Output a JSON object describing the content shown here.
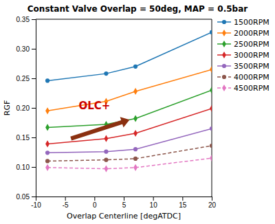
{
  "chart_data": {
    "type": "line",
    "title": "Constant Valve Overlap = 50deg, MAP = 0.5bar",
    "x_label": "Overlap Centerline [degATDC]",
    "y_label": "RGF",
    "x": [
      -8,
      2,
      7,
      20
    ],
    "xlim": [
      -10,
      20
    ],
    "ylim": [
      0.05,
      0.35
    ],
    "xticks": [
      -10,
      -5,
      0,
      5,
      10,
      15,
      20
    ],
    "yticks": [
      0.05,
      {
        "value": 0.1,
        "label": "0.10"
      },
      0.15,
      {
        "value": 0.2,
        "label": "0.20"
      },
      0.25,
      {
        "value": 0.3,
        "label": "0.30"
      },
      0.35
    ],
    "grid": false,
    "legend": "right",
    "series": [
      {
        "name": "1500RPM",
        "line_style": "solid",
        "marker": "circle",
        "values": [
          0.246,
          0.258,
          0.27,
          0.328
        ]
      },
      {
        "name": "2000RPM",
        "line_style": "solid",
        "marker": "diamond",
        "values": [
          0.195,
          0.211,
          0.228,
          0.265
        ]
      },
      {
        "name": "2500RPM",
        "line_style": "solid",
        "marker": "diamond",
        "values": [
          0.167,
          0.172,
          0.182,
          0.23
        ]
      },
      {
        "name": "3000RPM",
        "line_style": "solid",
        "marker": "diamond",
        "values": [
          0.139,
          0.148,
          0.157,
          0.199
        ]
      },
      {
        "name": "3500RPM",
        "line_style": "solid",
        "marker": "circle",
        "values": [
          0.124,
          0.126,
          0.13,
          0.165
        ]
      },
      {
        "name": "4000RPM",
        "line_style": "dashed",
        "marker": "circle",
        "values": [
          0.11,
          0.112,
          0.114,
          0.136
        ]
      },
      {
        "name": "4500RPM",
        "line_style": "dashed",
        "marker": "diamond",
        "values": [
          0.099,
          0.097,
          0.099,
          0.115
        ]
      }
    ],
    "annotations": [
      {
        "text": "OLC+",
        "x": 0,
        "y": 0.198,
        "color": "#cc0000",
        "arrow": {
          "x_start": -4,
          "y_start": 0.148,
          "x_end": 6,
          "y_end": 0.18,
          "color": "#8B3010"
        }
      }
    ]
  }
}
